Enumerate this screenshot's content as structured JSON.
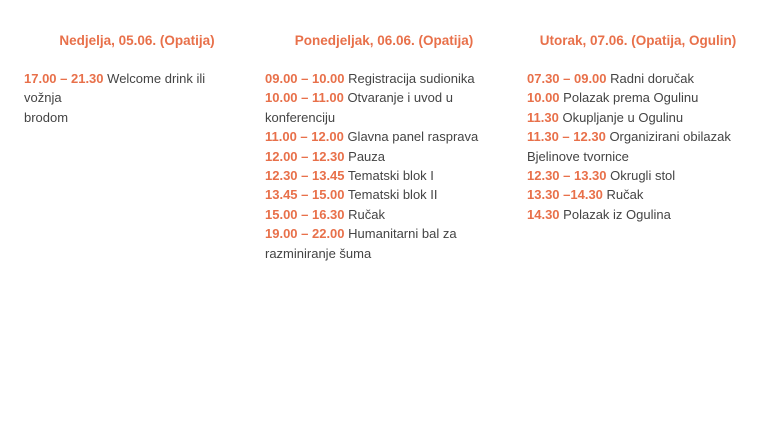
{
  "accent_color": "#e8704a",
  "days": [
    {
      "heading": "Nedjelja, 05.06. (Opatija)",
      "items": [
        {
          "time": "17.00 – 21.30",
          "text": "Welcome drink ili vožnja",
          "text2": "brodom"
        }
      ]
    },
    {
      "heading": "Ponedjeljak, 06.06. (Opatija)",
      "items": [
        {
          "time": "09.00 – 10.00",
          "text": "Registracija sudionika"
        },
        {
          "time": "10.00 – 11.00",
          "text": "Otvaranje i uvod u konferenciju"
        },
        {
          "time": "11.00 – 12.00",
          "text": "Glavna panel rasprava"
        },
        {
          "time": "12.00 – 12.30",
          "text": "Pauza"
        },
        {
          "time": "12.30 – 13.45",
          "text": "Tematski blok I"
        },
        {
          "time": "13.45 – 15.00",
          "text": "Tematski blok II"
        },
        {
          "time": "15.00 – 16.30",
          "text": "Ručak"
        },
        {
          "time": "19.00 – 22.00",
          "text": "Humanitarni bal za razminiranje šuma"
        }
      ]
    },
    {
      "heading": "Utorak, 07.06. (Opatija, Ogulin)",
      "items": [
        {
          "time": "07.30 – 09.00",
          "text": "Radni doručak"
        },
        {
          "time": "10.00",
          "text": "Polazak prema Ogulinu"
        },
        {
          "time": "11.30",
          "text": "Okupljanje u Ogulinu"
        },
        {
          "time": "11.30 – 12.30",
          "text": "Organizirani obilazak Bjelinove tvornice"
        },
        {
          "time": "12.30 – 13.30",
          "text": "Okrugli stol"
        },
        {
          "time": "13.30 –14.30",
          "text": "Ručak"
        },
        {
          "time": "14.30",
          "text": "Polazak iz Ogulina"
        }
      ]
    }
  ]
}
